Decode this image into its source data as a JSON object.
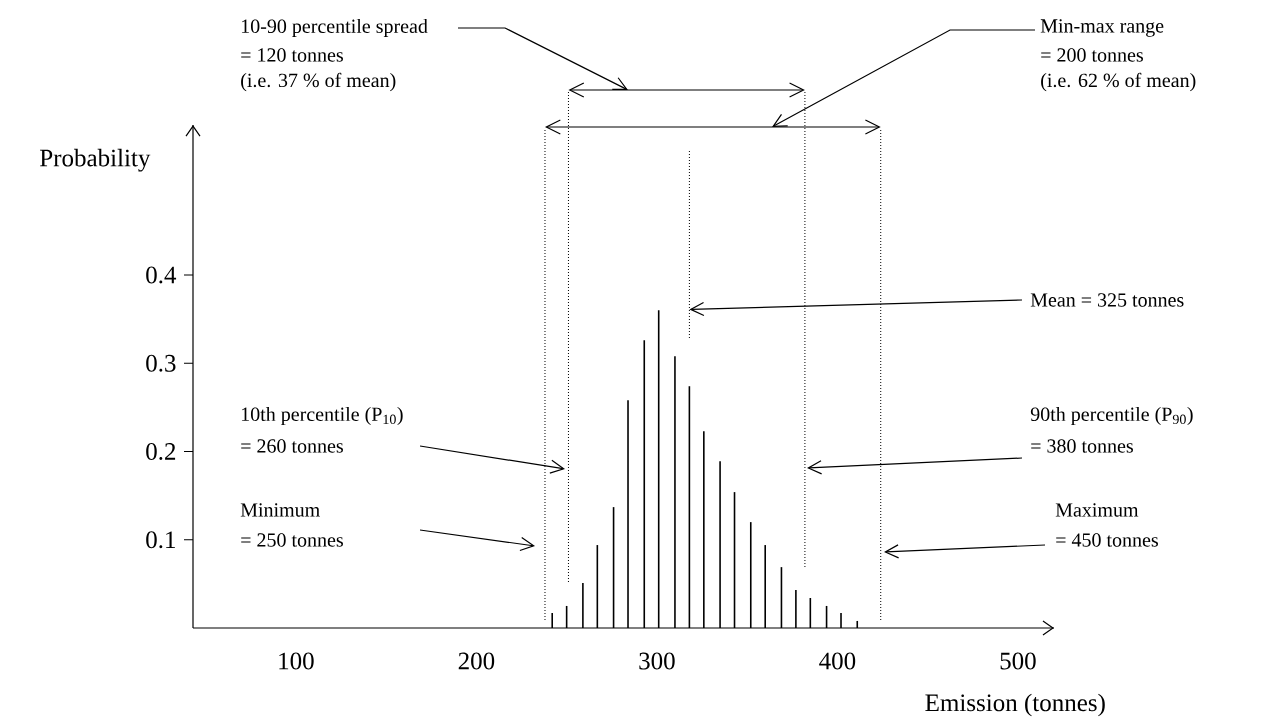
{
  "chart_data": {
    "type": "bar",
    "color": "#000000",
    "x": [
      242,
      250,
      259,
      267,
      276,
      284,
      293,
      301,
      310,
      318,
      326,
      335,
      343,
      352,
      360,
      369,
      377,
      385,
      394,
      402,
      411
    ],
    "values": [
      0.017,
      0.025,
      0.051,
      0.094,
      0.137,
      0.258,
      0.326,
      0.36,
      0.308,
      0.274,
      0.223,
      0.189,
      0.154,
      0.12,
      0.094,
      0.069,
      0.043,
      0.034,
      0.025,
      0.017,
      0.008
    ],
    "xlim": [
      43,
      520
    ],
    "ylim": [
      0,
      0.57
    ],
    "xticks": [
      100,
      200,
      300,
      400,
      500
    ],
    "yticks": [
      0.1,
      0.2,
      0.3,
      0.4
    ],
    "xlabel": "Emission (tonnes)",
    "ylabel": "Probability",
    "ref_lines": [
      {
        "axis": "x",
        "value": 238,
        "line_style": "dotted"
      },
      {
        "axis": "x",
        "value": 251,
        "line_style": "dotted"
      },
      {
        "axis": "x",
        "value": 318,
        "line_style": "dotted"
      },
      {
        "axis": "x",
        "value": 382,
        "line_style": "dotted"
      },
      {
        "axis": "x",
        "value": 424,
        "line_style": "dotted"
      }
    ],
    "annotations": [
      "10-90 percentile spread",
      "= 120 tonnes",
      "(i.e. 37 % of mean)",
      "Min-max range",
      "= 200 tonnes",
      "(i.e. 62 % of mean)",
      {
        "text": "Mean = 325 tonnes",
        "x": 318,
        "y": 0.361
      },
      "10th percentile (P$_{10}$)",
      "= 260 tonnes",
      "Minimum",
      "= 250 tonnes",
      "90th percentile (P$_{90}$)",
      "= 380 tonnes",
      "Maximum",
      "= 450 tonnes"
    ]
  }
}
